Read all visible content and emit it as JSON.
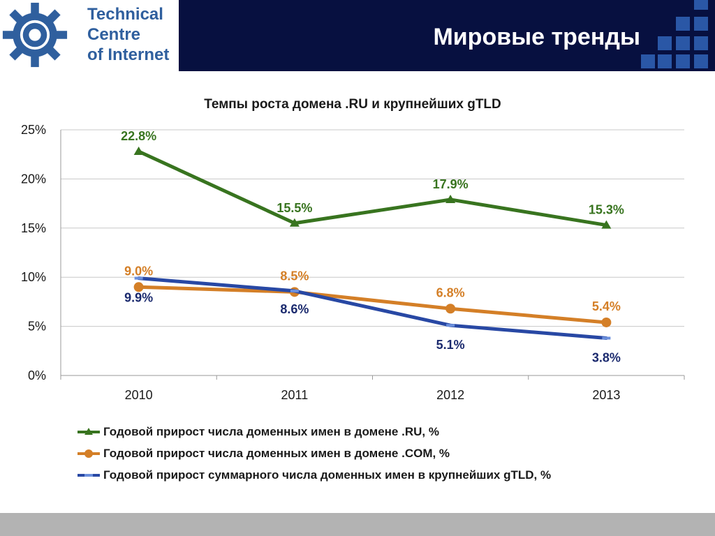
{
  "header": {
    "logo_lines": [
      "Technical",
      "Centre",
      "of Internet"
    ],
    "title": "Мировые тренды"
  },
  "colors": {
    "header_bg": "#071040",
    "logo_blue": "#2f5f9e",
    "ru": "#38741f",
    "com": "#d47f27",
    "gtld": "#2848a4",
    "footer": "#b3b3b3"
  },
  "chart_data": {
    "type": "line",
    "title": "Темпы роста домена .RU и крупнейших gTLD",
    "categories": [
      "2010",
      "2011",
      "2012",
      "2013"
    ],
    "ylim": [
      0,
      25
    ],
    "yticks": [
      0,
      5,
      10,
      15,
      20,
      25
    ],
    "ytick_labels": [
      "0%",
      "5%",
      "10%",
      "15%",
      "20%",
      "25%"
    ],
    "grid": true,
    "legend_position": "bottom",
    "series": [
      {
        "name": "Годовой прирост числа доменных имен в домене .RU, %",
        "values": [
          22.8,
          15.5,
          17.9,
          15.3
        ],
        "labels": [
          "22.8%",
          "15.5%",
          "17.9%",
          "15.3%"
        ],
        "marker": "triangle",
        "color": "#38741f"
      },
      {
        "name": "Годовой прирост числа доменных имен в домене .COM, %",
        "values": [
          9.0,
          8.5,
          6.8,
          5.4
        ],
        "labels": [
          "9.0%",
          "8.5%",
          "6.8%",
          "5.4%"
        ],
        "marker": "circle",
        "color": "#d47f27"
      },
      {
        "name": "Годовой прирост суммарного числа доменных имен в крупнейших gTLD, %",
        "values": [
          9.9,
          8.6,
          5.1,
          3.8
        ],
        "labels": [
          "9.9%",
          "8.6%",
          "5.1%",
          "3.8%"
        ],
        "marker": "dash",
        "color": "#2848a4"
      }
    ]
  }
}
